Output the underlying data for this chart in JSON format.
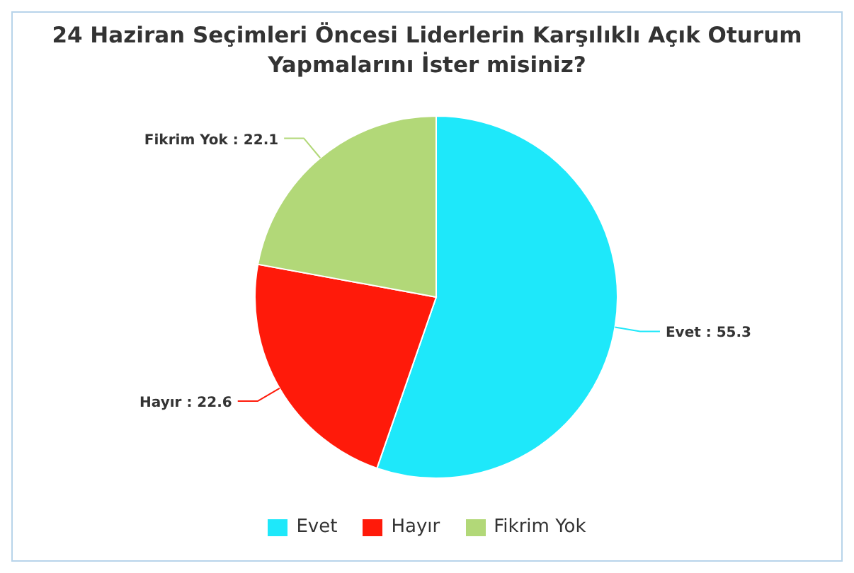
{
  "chart_data": {
    "type": "pie",
    "title": "24 Haziran Seçimleri Öncesi Liderlerin Karşılıklı Açık Oturum Yapmalarını İster misiniz?",
    "categories": [
      "Evet",
      "Hayır",
      "Fikrim Yok"
    ],
    "values": [
      55.3,
      22.6,
      22.1
    ],
    "colors": [
      "#1ee8fa",
      "#ff1a0a",
      "#b2d878"
    ],
    "value_labels": [
      "Evet : 55.3",
      "Hayır : 22.6",
      "Fikrim Yok : 22.1"
    ],
    "legend": "bottom"
  }
}
